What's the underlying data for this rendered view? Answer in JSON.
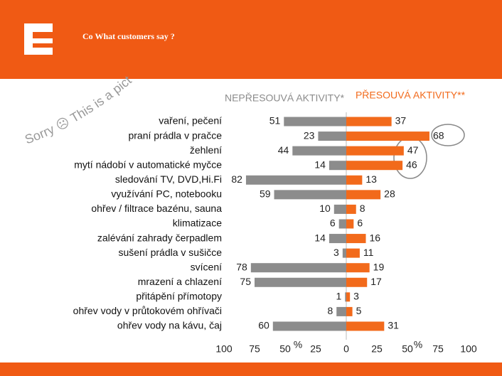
{
  "header": {
    "title": "Co What customers say ?"
  },
  "watermark": "Sorry ☹ This is a picture",
  "chart_data": {
    "type": "diverging-bar",
    "categories": [
      "vaření, pečení",
      "praní prádla v pračce",
      "žehlení",
      "mytí nádobí v automatické myčce",
      "sledování TV, DVD,Hi.Fi",
      "využívání PC, notebooku",
      "ohřev / filtrace bazénu, sauna",
      "klimatizace",
      "zalévání zahrady čerpadlem",
      "sušení prádla v sušičce",
      "svícení",
      "mrazení a chlazení",
      "přitápění přímotopy",
      "ohřev vody v průtokovém ohřívači",
      "ohřev vody na kávu, čaj"
    ],
    "series": [
      {
        "name": "NEPŘESOUVÁ AKTIVITY*",
        "color": "#8c8c8c",
        "values": [
          51,
          23,
          44,
          14,
          82,
          59,
          10,
          6,
          14,
          3,
          78,
          75,
          1,
          8,
          60
        ]
      },
      {
        "name": "PŘESOUVÁ AKTIVITY**",
        "color": "#f26a1b",
        "values": [
          37,
          68,
          47,
          46,
          13,
          28,
          8,
          6,
          16,
          11,
          19,
          17,
          3,
          5,
          31
        ]
      }
    ],
    "xlim": [
      -100,
      100
    ],
    "xticks": [
      {
        "value": -100,
        "label": "100"
      },
      {
        "value": -75,
        "label": "75"
      },
      {
        "value": -50,
        "label": "50"
      },
      {
        "value": -25,
        "label": "25"
      },
      0,
      25,
      50,
      75,
      100
    ],
    "x_unit_label": "%"
  }
}
